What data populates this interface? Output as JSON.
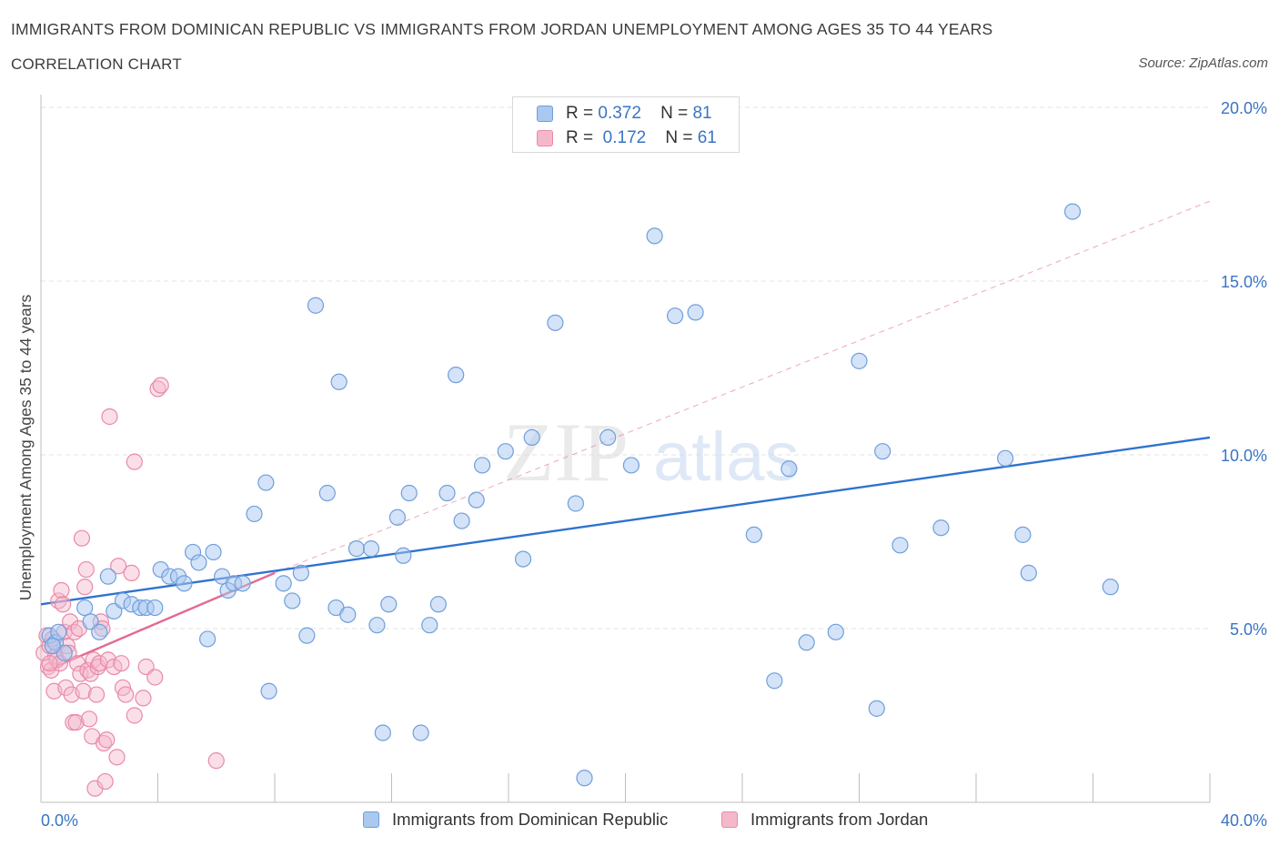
{
  "title": "IMMIGRANTS FROM DOMINICAN REPUBLIC VS IMMIGRANTS FROM JORDAN UNEMPLOYMENT AMONG AGES 35 TO 44 YEARS",
  "subtitle": "CORRELATION CHART",
  "source": "Source: ZipAtlas.com",
  "watermark": {
    "zip": "ZIP",
    "atlas": "atlas"
  },
  "colors": {
    "blue_fill": "#aac8f0",
    "blue_stroke": "#6f9fdc",
    "blue_line": "#2f72cf",
    "pink_fill": "#f5b8cb",
    "pink_stroke": "#e98aa8",
    "pink_line": "#e36a92",
    "axis_label": "#3a74c4",
    "grid": "#e3e3e3"
  },
  "legend": {
    "rows": [
      {
        "r_label": "R =",
        "r_value": "0.372",
        "n_label": "N =",
        "n_value": "81",
        "series": "blue"
      },
      {
        "r_label": "R =",
        "r_value": "0.172",
        "n_label": "N =",
        "n_value": "61",
        "series": "pink"
      }
    ],
    "bottom": [
      {
        "label": "Immigrants from Dominican Republic",
        "series": "blue"
      },
      {
        "label": "Immigrants from Jordan",
        "series": "pink"
      }
    ]
  },
  "chart_data": {
    "type": "scatter",
    "title": "IMMIGRANTS FROM DOMINICAN REPUBLIC VS IMMIGRANTS FROM JORDAN UNEMPLOYMENT AMONG AGES 35 TO 44 YEARS",
    "xlabel": "",
    "ylabel": "Unemployment Among Ages 35 to 44 years",
    "xlim": [
      0,
      40
    ],
    "ylim": [
      0,
      20
    ],
    "x_tick_labels": [
      "0.0%",
      "40.0%"
    ],
    "y_ticks": [
      5,
      10,
      15,
      20
    ],
    "y_tick_labels": [
      "5.0%",
      "10.0%",
      "15.0%",
      "20.0%"
    ],
    "grid": true,
    "legend_position": "top-center",
    "series": [
      {
        "name": "Immigrants from Dominican Republic",
        "r": 0.372,
        "n": 81,
        "trend": {
          "x": [
            0,
            40
          ],
          "y": [
            5.7,
            10.5
          ]
        },
        "points": [
          [
            0.3,
            4.8
          ],
          [
            0.5,
            4.6
          ],
          [
            0.6,
            4.9
          ],
          [
            0.8,
            4.3
          ],
          [
            1.5,
            5.6
          ],
          [
            1.7,
            5.2
          ],
          [
            2.0,
            4.9
          ],
          [
            2.3,
            6.5
          ],
          [
            2.5,
            5.5
          ],
          [
            2.8,
            5.8
          ],
          [
            3.1,
            5.7
          ],
          [
            3.4,
            5.6
          ],
          [
            3.6,
            5.6
          ],
          [
            3.9,
            5.6
          ],
          [
            4.1,
            6.7
          ],
          [
            4.4,
            6.5
          ],
          [
            4.7,
            6.5
          ],
          [
            4.9,
            6.3
          ],
          [
            5.2,
            7.2
          ],
          [
            5.4,
            6.9
          ],
          [
            5.7,
            4.7
          ],
          [
            5.9,
            7.2
          ],
          [
            6.2,
            6.5
          ],
          [
            6.4,
            6.1
          ],
          [
            6.6,
            6.3
          ],
          [
            6.9,
            6.3
          ],
          [
            7.3,
            8.3
          ],
          [
            7.7,
            9.2
          ],
          [
            7.8,
            3.2
          ],
          [
            8.3,
            6.3
          ],
          [
            8.6,
            5.8
          ],
          [
            8.9,
            6.6
          ],
          [
            9.1,
            4.8
          ],
          [
            9.4,
            14.3
          ],
          [
            9.8,
            8.9
          ],
          [
            10.1,
            5.6
          ],
          [
            10.2,
            12.1
          ],
          [
            10.5,
            5.4
          ],
          [
            10.8,
            7.3
          ],
          [
            11.3,
            7.3
          ],
          [
            11.5,
            5.1
          ],
          [
            11.7,
            2.0
          ],
          [
            11.9,
            5.7
          ],
          [
            12.2,
            8.2
          ],
          [
            12.4,
            7.1
          ],
          [
            12.6,
            8.9
          ],
          [
            13.0,
            2.0
          ],
          [
            13.3,
            5.1
          ],
          [
            13.6,
            5.7
          ],
          [
            13.9,
            8.9
          ],
          [
            14.2,
            12.3
          ],
          [
            14.4,
            8.1
          ],
          [
            14.9,
            8.7
          ],
          [
            15.1,
            9.7
          ],
          [
            15.9,
            10.1
          ],
          [
            16.5,
            7.0
          ],
          [
            16.8,
            10.5
          ],
          [
            17.6,
            13.8
          ],
          [
            18.3,
            8.6
          ],
          [
            18.6,
            0.7
          ],
          [
            19.4,
            10.5
          ],
          [
            20.2,
            9.7
          ],
          [
            21.0,
            16.3
          ],
          [
            21.7,
            14.0
          ],
          [
            22.4,
            14.1
          ],
          [
            24.4,
            7.7
          ],
          [
            25.1,
            3.5
          ],
          [
            25.6,
            9.6
          ],
          [
            26.2,
            4.6
          ],
          [
            27.2,
            4.9
          ],
          [
            28.0,
            12.7
          ],
          [
            28.6,
            2.7
          ],
          [
            28.8,
            10.1
          ],
          [
            29.4,
            7.4
          ],
          [
            30.8,
            7.9
          ],
          [
            33.0,
            9.9
          ],
          [
            33.6,
            7.7
          ],
          [
            33.8,
            6.6
          ],
          [
            35.3,
            17.0
          ],
          [
            36.6,
            6.2
          ],
          [
            0.4,
            4.5
          ]
        ]
      },
      {
        "name": "Immigrants from Jordan",
        "r": 0.172,
        "n": 61,
        "trend": {
          "x": [
            0.2,
            8.0
          ],
          "y": [
            3.8,
            6.6
          ]
        },
        "trend_extended": {
          "x": [
            8.0,
            40.0
          ],
          "y": [
            6.6,
            17.3
          ]
        },
        "points": [
          [
            0.1,
            4.3
          ],
          [
            0.2,
            4.8
          ],
          [
            0.25,
            3.9
          ],
          [
            0.3,
            4.5
          ],
          [
            0.35,
            3.8
          ],
          [
            0.4,
            4.7
          ],
          [
            0.45,
            3.2
          ],
          [
            0.5,
            4.2
          ],
          [
            0.55,
            4.1
          ],
          [
            0.6,
            5.8
          ],
          [
            0.65,
            4.0
          ],
          [
            0.7,
            6.1
          ],
          [
            0.75,
            5.7
          ],
          [
            0.8,
            4.9
          ],
          [
            0.85,
            3.3
          ],
          [
            0.9,
            4.5
          ],
          [
            0.95,
            4.3
          ],
          [
            1.0,
            5.2
          ],
          [
            1.05,
            3.1
          ],
          [
            1.1,
            2.3
          ],
          [
            1.15,
            4.9
          ],
          [
            1.2,
            2.3
          ],
          [
            1.25,
            4.0
          ],
          [
            1.3,
            5.0
          ],
          [
            1.35,
            3.7
          ],
          [
            1.4,
            7.6
          ],
          [
            1.45,
            3.2
          ],
          [
            1.5,
            6.2
          ],
          [
            1.55,
            6.7
          ],
          [
            1.6,
            3.8
          ],
          [
            1.65,
            2.4
          ],
          [
            1.7,
            3.7
          ],
          [
            1.75,
            1.9
          ],
          [
            1.8,
            4.1
          ],
          [
            1.85,
            0.4
          ],
          [
            1.9,
            3.1
          ],
          [
            1.95,
            3.9
          ],
          [
            2.0,
            4.0
          ],
          [
            2.05,
            5.2
          ],
          [
            2.1,
            5.0
          ],
          [
            2.15,
            1.7
          ],
          [
            2.2,
            0.6
          ],
          [
            2.25,
            1.8
          ],
          [
            2.3,
            4.1
          ],
          [
            2.35,
            11.1
          ],
          [
            2.5,
            3.9
          ],
          [
            2.6,
            1.3
          ],
          [
            2.65,
            6.8
          ],
          [
            2.75,
            4.0
          ],
          [
            2.8,
            3.3
          ],
          [
            2.9,
            3.1
          ],
          [
            3.1,
            6.6
          ],
          [
            3.2,
            9.8
          ],
          [
            3.2,
            2.5
          ],
          [
            3.5,
            3.0
          ],
          [
            3.6,
            3.9
          ],
          [
            3.9,
            3.6
          ],
          [
            4.0,
            11.9
          ],
          [
            4.1,
            12.0
          ],
          [
            6.0,
            1.2
          ],
          [
            0.3,
            4.0
          ]
        ]
      }
    ]
  }
}
